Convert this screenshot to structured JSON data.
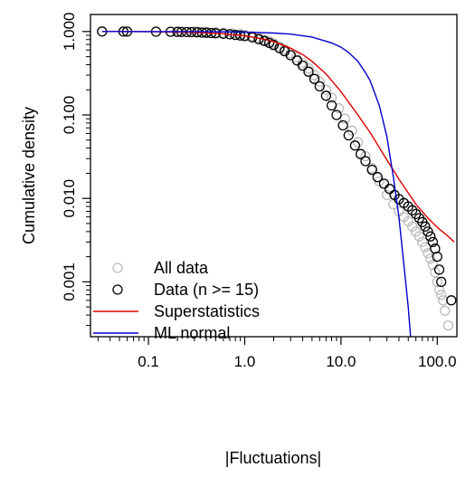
{
  "chart_data": {
    "type": "scatter",
    "xlabel": "|Fluctuations|",
    "ylabel": "Cumulative density",
    "x_scale": "log",
    "y_scale": "log",
    "xlim": [
      0.025,
      160
    ],
    "ylim": [
      0.00022,
      1.6
    ],
    "x_ticks": [
      0.1,
      1.0,
      10.0,
      100.0
    ],
    "x_tick_labels": [
      "0.1",
      "1.0",
      "10.0",
      "100.0"
    ],
    "y_ticks": [
      0.001,
      0.01,
      0.1,
      1.0
    ],
    "y_tick_labels": [
      "0.001",
      "0.010",
      "0.100",
      "1.000"
    ],
    "grid": false,
    "legend_position": "bottom-left",
    "legend": [
      {
        "label": "All data",
        "kind": "point",
        "color": "#bbbbbb"
      },
      {
        "label": "Data (n >= 15)",
        "kind": "point",
        "color": "#000000"
      },
      {
        "label": "Superstatistics",
        "kind": "line",
        "color": "#dd0000"
      },
      {
        "label": "ML normal",
        "kind": "line",
        "color": "#0000cc"
      }
    ],
    "series": [
      {
        "name": "All data",
        "kind": "points",
        "color": "#bbbbbb",
        "x": [
          0.3,
          0.33,
          0.4,
          0.5,
          0.6,
          0.75,
          0.9,
          1.0,
          1.2,
          1.4,
          1.6,
          1.8,
          2.0,
          2.3,
          2.6,
          3.0,
          3.4,
          4.0,
          4.6,
          5.3,
          6.0,
          7.0,
          8.0,
          9.5,
          11,
          13,
          15,
          18,
          21,
          25,
          30,
          35,
          40,
          45,
          50,
          55,
          60,
          65,
          70,
          75,
          80,
          85,
          90,
          95,
          100,
          105,
          110,
          115,
          120,
          130
        ],
        "y": [
          1.0,
          0.995,
          0.99,
          0.98,
          0.965,
          0.95,
          0.93,
          0.91,
          0.88,
          0.84,
          0.8,
          0.76,
          0.72,
          0.66,
          0.61,
          0.55,
          0.49,
          0.42,
          0.36,
          0.3,
          0.25,
          0.2,
          0.16,
          0.12,
          0.09,
          0.065,
          0.047,
          0.032,
          0.023,
          0.016,
          0.011,
          0.0085,
          0.007,
          0.006,
          0.0053,
          0.0046,
          0.004,
          0.0035,
          0.003,
          0.0026,
          0.0022,
          0.0019,
          0.0016,
          0.0013,
          0.001,
          0.0008,
          0.0007,
          0.0006,
          0.00045,
          0.0003
        ]
      },
      {
        "name": "Data (n >= 15)",
        "kind": "points",
        "color": "#000000",
        "x": [
          0.033,
          0.055,
          0.06,
          0.12,
          0.17,
          0.2,
          0.22,
          0.25,
          0.28,
          0.32,
          0.36,
          0.4,
          0.45,
          0.5,
          0.6,
          0.7,
          0.8,
          0.9,
          1.0,
          1.2,
          1.4,
          1.6,
          1.8,
          2.0,
          2.3,
          2.6,
          3.0,
          3.5,
          4.0,
          4.6,
          5.3,
          6.0,
          7.0,
          8.0,
          9.0,
          10.5,
          12,
          14,
          16,
          18,
          21,
          24,
          28,
          32,
          36,
          40,
          45,
          50,
          55,
          60,
          65,
          70,
          75,
          80,
          85,
          90,
          95,
          100,
          105,
          110,
          140
        ],
        "y": [
          1.0,
          0.998,
          0.997,
          0.995,
          0.992,
          0.99,
          0.988,
          0.985,
          0.982,
          0.978,
          0.972,
          0.966,
          0.96,
          0.952,
          0.94,
          0.925,
          0.91,
          0.895,
          0.88,
          0.85,
          0.81,
          0.77,
          0.73,
          0.69,
          0.63,
          0.58,
          0.52,
          0.45,
          0.39,
          0.33,
          0.27,
          0.22,
          0.17,
          0.13,
          0.1,
          0.075,
          0.057,
          0.043,
          0.034,
          0.028,
          0.022,
          0.018,
          0.015,
          0.013,
          0.011,
          0.0098,
          0.0088,
          0.008,
          0.0072,
          0.0065,
          0.0058,
          0.0052,
          0.0046,
          0.004,
          0.0035,
          0.003,
          0.0025,
          0.002,
          0.0014,
          0.001,
          0.0006
        ]
      },
      {
        "name": "Superstatistics",
        "kind": "line",
        "color": "#dd0000",
        "x": [
          0.033,
          0.1,
          0.3,
          0.6,
          1.0,
          1.5,
          2.0,
          3.0,
          4.0,
          5.0,
          7.0,
          10,
          15,
          20,
          30,
          40,
          60,
          80,
          100,
          130,
          150
        ],
        "y": [
          1.0,
          0.997,
          0.975,
          0.94,
          0.89,
          0.82,
          0.76,
          0.63,
          0.53,
          0.44,
          0.31,
          0.19,
          0.1,
          0.062,
          0.029,
          0.017,
          0.0085,
          0.0058,
          0.0045,
          0.0035,
          0.003
        ]
      },
      {
        "name": "ML normal",
        "kind": "line",
        "color": "#0000cc",
        "x": [
          0.033,
          0.1,
          0.3,
          1.0,
          2.0,
          3.0,
          5.0,
          8.0,
          10,
          12,
          15,
          18,
          20,
          25,
          30,
          35,
          40,
          45,
          50,
          55
        ],
        "y": [
          1.0,
          0.999,
          0.997,
          0.985,
          0.96,
          0.93,
          0.86,
          0.73,
          0.65,
          0.56,
          0.44,
          0.32,
          0.26,
          0.13,
          0.055,
          0.018,
          0.006,
          0.0016,
          0.0005,
          0.00012
        ]
      }
    ]
  }
}
